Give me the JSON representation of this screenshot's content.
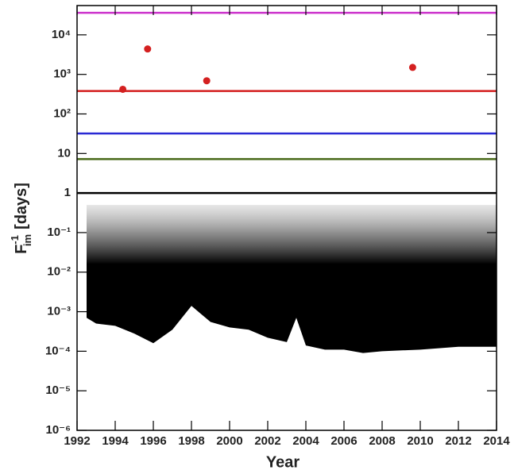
{
  "chart_data": {
    "type": "scatter",
    "xlabel": "Year",
    "ylabel": "F",
    "ylabel_sup": "-1",
    "ylabel_sub": "im",
    "ylabel_unit": "[days]",
    "log_y": true,
    "xlim": [
      1992,
      2014
    ],
    "xticks": [
      1992,
      1994,
      1996,
      1998,
      2000,
      2002,
      2004,
      2006,
      2008,
      2010,
      2012,
      2014
    ],
    "ylim": [
      1e-06,
      55000
    ],
    "yticks": [
      {
        "value": 1e-06,
        "label": "10⁻⁶"
      },
      {
        "value": 1e-05,
        "label": "10⁻⁵"
      },
      {
        "value": 0.0001,
        "label": "10⁻⁴"
      },
      {
        "value": 0.001,
        "label": "10⁻³"
      },
      {
        "value": 0.01,
        "label": "10⁻²"
      },
      {
        "value": 0.1,
        "label": "10⁻¹"
      },
      1,
      10,
      {
        "value": 100,
        "label": "10²"
      },
      {
        "value": 1000,
        "label": "10³"
      },
      {
        "value": 10000,
        "label": "10⁴"
      }
    ],
    "hlines": [
      {
        "value": 36000,
        "color": "#cc33cc"
      },
      {
        "value": 380,
        "color": "#d42020"
      },
      {
        "value": 32,
        "color": "#2a2ad4"
      },
      {
        "value": 7.2,
        "color": "#4a6a1a"
      },
      {
        "value": 1,
        "color": "#000000"
      }
    ],
    "points": {
      "color": "#d42020",
      "x": [
        1994.4,
        1995.7,
        1998.8,
        2009.6
      ],
      "values": [
        420,
        4400,
        690,
        1500
      ]
    },
    "cloud": {
      "color": "#000000",
      "x": [
        1992.5,
        1993,
        1994,
        1995,
        1996,
        1997,
        1998,
        1999,
        2000,
        2001,
        2002,
        2003,
        2003.5,
        2004,
        2005,
        2006,
        2007,
        2008,
        2010,
        2012,
        2014
      ],
      "lower": [
        0.0007,
        0.0005,
        0.00044,
        0.00028,
        0.00016,
        0.00035,
        0.0014,
        0.00055,
        0.0004,
        0.00035,
        0.00022,
        0.00017,
        0.0007,
        0.00014,
        0.00011,
        0.00011,
        9e-05,
        0.0001,
        0.00011,
        0.00013,
        0.00013
      ],
      "upper": [
        0.5,
        0.5,
        0.5,
        0.5,
        0.5,
        0.5,
        0.5,
        0.5,
        0.5,
        0.5,
        0.5,
        0.5,
        0.5,
        0.5,
        0.5,
        0.5,
        0.5,
        0.5,
        0.5,
        0.5,
        0.5
      ]
    }
  }
}
